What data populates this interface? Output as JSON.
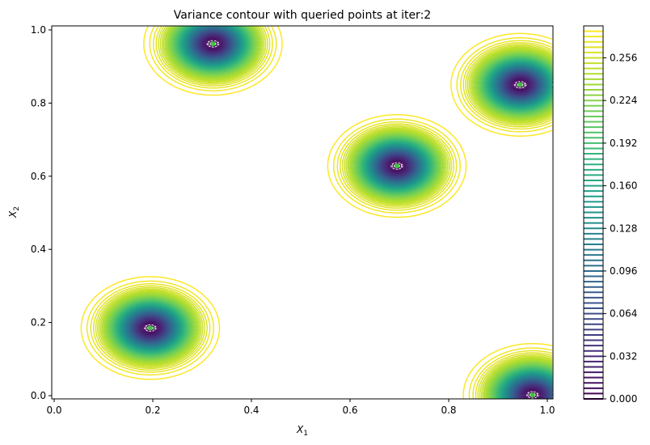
{
  "chart_data": {
    "type": "contour",
    "title": "Variance contour with queried points at iter:2",
    "xlabel": {
      "base": "X",
      "sub": "1"
    },
    "ylabel": {
      "base": "X",
      "sub": "2"
    },
    "xlim": [
      -0.005,
      1.01
    ],
    "ylim": [
      -0.01,
      1.01
    ],
    "xticks": [
      "0.0",
      "0.2",
      "0.4",
      "0.6",
      "0.8",
      "1.0"
    ],
    "yticks": [
      "0.0",
      "0.2",
      "0.4",
      "0.6",
      "0.8",
      "1.0"
    ],
    "colormap": "viridis",
    "levels": {
      "min": 0.0,
      "max": 0.276,
      "step": 0.004
    },
    "colorbar": {
      "ticks": [
        "0.000",
        "0.032",
        "0.064",
        "0.096",
        "0.128",
        "0.160",
        "0.192",
        "0.224",
        "0.256"
      ],
      "range": [
        0.0,
        0.28
      ]
    },
    "queried_points": [
      {
        "x": 0.195,
        "y": 0.185
      },
      {
        "x": 0.322,
        "y": 0.962
      },
      {
        "x": 0.695,
        "y": 0.628
      },
      {
        "x": 0.945,
        "y": 0.85
      },
      {
        "x": 0.97,
        "y": 0.002
      }
    ],
    "marker_color": "#3cc43c",
    "grid": false
  }
}
